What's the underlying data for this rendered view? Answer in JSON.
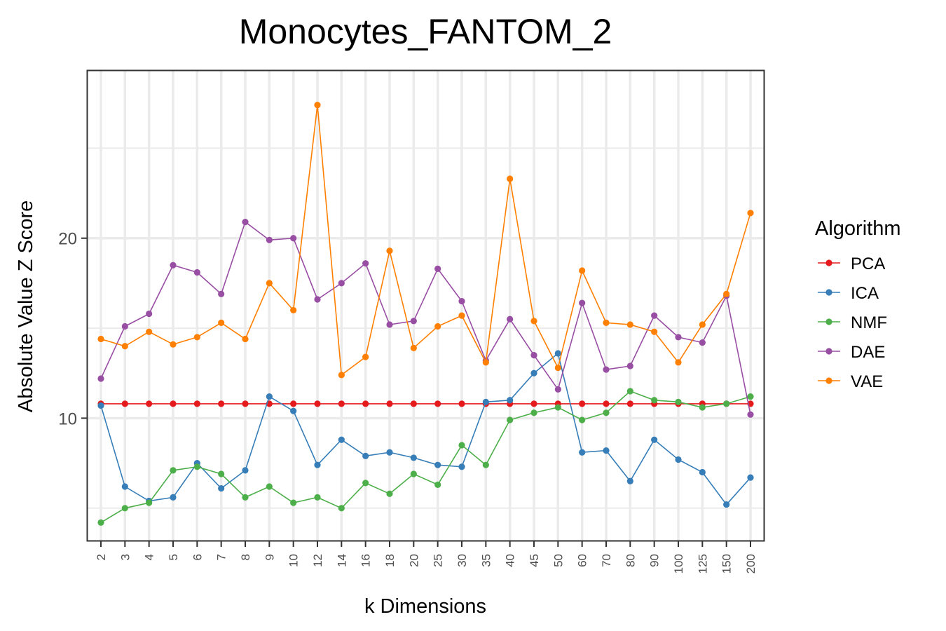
{
  "chart_data": {
    "type": "line",
    "title": "Monocytes_FANTOM_2",
    "xlabel": "k Dimensions",
    "ylabel": "Absolute Value Z Score",
    "categories": [
      "2",
      "3",
      "4",
      "5",
      "6",
      "7",
      "8",
      "9",
      "10",
      "12",
      "14",
      "16",
      "18",
      "20",
      "25",
      "30",
      "35",
      "40",
      "45",
      "50",
      "60",
      "70",
      "80",
      "90",
      "100",
      "125",
      "150",
      "200"
    ],
    "yticks": [
      10,
      20
    ],
    "ylim": [
      3.2,
      29.3
    ],
    "grid": true,
    "legend": {
      "title": "Algorithm",
      "position": "right"
    },
    "series": [
      {
        "name": "PCA",
        "color": "#e41a1c",
        "values": [
          10.8,
          10.8,
          10.8,
          10.8,
          10.8,
          10.8,
          10.8,
          10.8,
          10.8,
          10.8,
          10.8,
          10.8,
          10.8,
          10.8,
          10.8,
          10.8,
          10.8,
          10.8,
          10.8,
          10.8,
          10.8,
          10.8,
          10.8,
          10.8,
          10.8,
          10.8,
          10.8,
          10.8
        ]
      },
      {
        "name": "ICA",
        "color": "#377eb8",
        "values": [
          10.7,
          6.2,
          5.4,
          5.6,
          7.5,
          6.1,
          7.1,
          11.2,
          10.4,
          7.4,
          8.8,
          7.9,
          8.1,
          7.8,
          7.4,
          7.3,
          10.9,
          11.0,
          12.5,
          13.6,
          8.1,
          8.2,
          6.5,
          8.8,
          7.7,
          7.0,
          5.2,
          6.7
        ]
      },
      {
        "name": "NMF",
        "color": "#4daf4a",
        "values": [
          4.2,
          5.0,
          5.3,
          7.1,
          7.3,
          6.9,
          5.6,
          6.2,
          5.3,
          5.6,
          5.0,
          6.4,
          5.8,
          6.9,
          6.3,
          8.5,
          7.4,
          9.9,
          10.3,
          10.6,
          9.9,
          10.3,
          11.5,
          11.0,
          10.9,
          10.6,
          10.8,
          11.2
        ]
      },
      {
        "name": "DAE",
        "color": "#984ea3",
        "values": [
          12.2,
          15.1,
          15.8,
          18.5,
          18.1,
          16.9,
          20.9,
          19.9,
          20.0,
          16.6,
          17.5,
          18.6,
          15.2,
          15.4,
          18.3,
          16.5,
          13.2,
          15.5,
          13.5,
          11.6,
          16.4,
          12.7,
          12.9,
          15.7,
          14.5,
          14.2,
          16.8,
          10.2
        ]
      },
      {
        "name": "VAE",
        "color": "#ff7f00",
        "values": [
          14.4,
          14.0,
          14.8,
          14.1,
          14.5,
          15.3,
          14.4,
          17.5,
          16.0,
          27.4,
          12.4,
          13.4,
          19.3,
          13.9,
          15.1,
          15.7,
          13.1,
          23.3,
          15.4,
          12.8,
          18.2,
          15.3,
          15.2,
          14.8,
          13.1,
          15.2,
          16.9,
          21.4
        ]
      }
    ]
  }
}
